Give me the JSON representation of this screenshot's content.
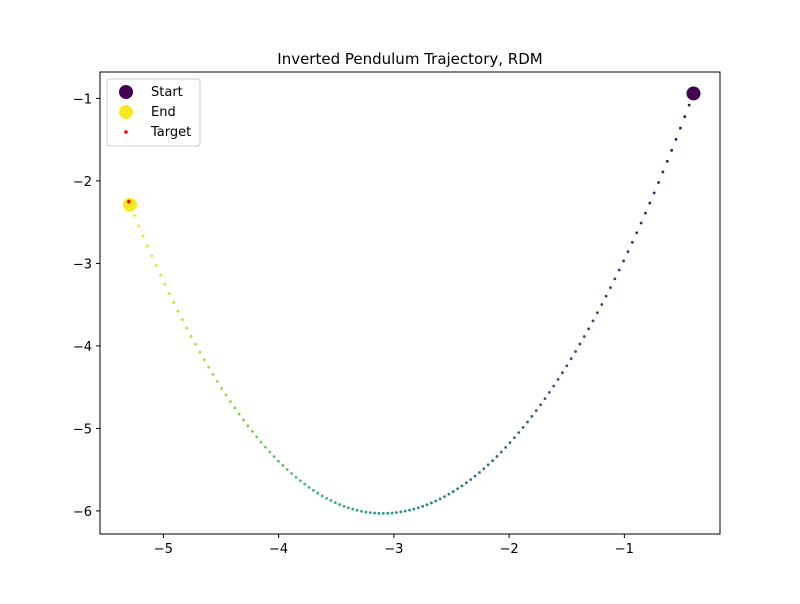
{
  "chart_data": {
    "type": "scatter",
    "title": "Inverted Pendulum Trajectory, RDM",
    "xlabel": "",
    "ylabel": "",
    "xlim": [
      -5.55,
      -0.17
    ],
    "ylim": [
      -6.28,
      -0.68
    ],
    "xticks": [
      -5,
      -4,
      -3,
      -2,
      -1
    ],
    "yticks": [
      -6,
      -5,
      -4,
      -3,
      -2,
      -1
    ],
    "xtick_labels": [
      "−5",
      "−4",
      "−3",
      "−2",
      "−1"
    ],
    "ytick_labels": [
      "−6",
      "−5",
      "−4",
      "−3",
      "−2",
      "−1"
    ],
    "grid": false,
    "legend_position": "upper-left",
    "colormap": "viridis",
    "trajectory": {
      "x_start": -0.4,
      "x_end": -5.29,
      "x_min_point": -3.1,
      "y_min": -6.03,
      "y_start": -0.94,
      "y_end": -2.29,
      "num_points": 130
    },
    "series": [
      {
        "name": "Start",
        "x": [
          -0.4
        ],
        "y": [
          -0.94
        ],
        "color": "#440154"
      },
      {
        "name": "End",
        "x": [
          -5.29
        ],
        "y": [
          -2.29
        ],
        "color": "#fde725"
      },
      {
        "name": "Target",
        "x": [
          -5.3
        ],
        "y": [
          -2.25
        ],
        "color": "#ff0000"
      }
    ]
  }
}
